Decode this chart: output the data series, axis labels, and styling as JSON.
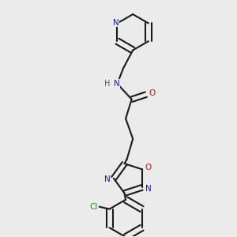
{
  "bg_color": "#ebebeb",
  "bond_color": "#1a1a1a",
  "bond_width": 1.5,
  "N_color": "#1414cc",
  "O_color": "#cc1414",
  "Cl_color": "#00aa00",
  "figsize": [
    3.0,
    3.0
  ],
  "dpi": 100,
  "xlim": [
    0.15,
    0.85
  ],
  "ylim": [
    0.02,
    1.0
  ]
}
